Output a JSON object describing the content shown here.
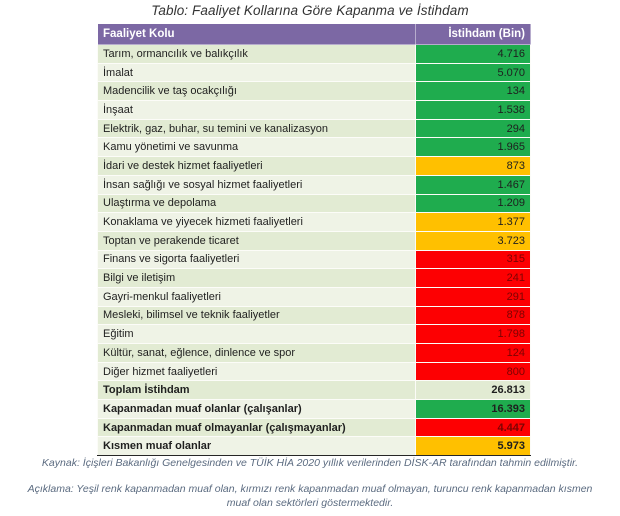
{
  "title": "Tablo: Faaliyet Kollarına Göre Kapanma ve İstihdam",
  "table": {
    "headers": [
      "Faaliyet Kolu",
      "İstihdam (Bin)"
    ],
    "rows": [
      {
        "label": "Tarım, ormancılık ve balıkçılık",
        "value": "4.716",
        "color": "green",
        "bold": false
      },
      {
        "label": "İmalat",
        "value": "5.070",
        "color": "green",
        "bold": false
      },
      {
        "label": "Madencilik ve taş ocakçılığı",
        "value": "134",
        "color": "green",
        "bold": false
      },
      {
        "label": "İnşaat",
        "value": "1.538",
        "color": "green",
        "bold": false
      },
      {
        "label": "Elektrik, gaz, buhar, su temini ve kanalizasyon",
        "value": "294",
        "color": "green",
        "bold": false
      },
      {
        "label": "Kamu yönetimi ve savunma",
        "value": "1.965",
        "color": "green",
        "bold": false
      },
      {
        "label": "İdari ve destek hizmet faaliyetleri",
        "value": "873",
        "color": "orange",
        "bold": false
      },
      {
        "label": "İnsan sağlığı ve sosyal hizmet faaliyetleri",
        "value": "1.467",
        "color": "green",
        "bold": false
      },
      {
        "label": "Ulaştırma ve depolama",
        "value": "1.209",
        "color": "green",
        "bold": false
      },
      {
        "label": "Konaklama ve yiyecek hizmeti faaliyetleri",
        "value": "1.377",
        "color": "orange",
        "bold": false
      },
      {
        "label": "Toptan ve perakende ticaret",
        "value": "3.723",
        "color": "orange",
        "bold": false
      },
      {
        "label": "Finans ve sigorta faaliyetleri",
        "value": "315",
        "color": "red",
        "bold": false
      },
      {
        "label": "Bilgi ve iletişim",
        "value": "241",
        "color": "red",
        "bold": false
      },
      {
        "label": "Gayri-menkul faaliyetleri",
        "value": "291",
        "color": "red",
        "bold": false
      },
      {
        "label": "Mesleki, bilimsel ve teknik faaliyetler",
        "value": "878",
        "color": "red",
        "bold": false
      },
      {
        "label": "Eğitim",
        "value": "1.798",
        "color": "red",
        "bold": false
      },
      {
        "label": "Kültür, sanat, eğlence, dinlence ve spor",
        "value": "124",
        "color": "red",
        "bold": false
      },
      {
        "label": "Diğer hizmet faaliyetleri",
        "value": "800",
        "color": "red",
        "bold": false
      },
      {
        "label": "Toplam İstihdam",
        "value": "26.813",
        "color": "none",
        "bold": true
      },
      {
        "label": "Kapanmadan muaf olanlar (çalışanlar)",
        "value": "16.393",
        "color": "green",
        "bold": true
      },
      {
        "label": "Kapanmadan muaf olmayanlar (çalışmayanlar)",
        "value": "4.447",
        "color": "red",
        "bold": true
      },
      {
        "label": "Kısmen muaf olanlar",
        "value": "5.973",
        "color": "orange",
        "bold": true
      }
    ]
  },
  "footnotes": {
    "source": "Kaynak: İçişleri Bakanlığı Genelgesinden ve TÜİK HİA 2020 yıllık verilerinden DİSK-AR tarafından tahmin edilmiştir.",
    "note": "Açıklama: Yeşil renk kapanmadan muaf olan, kırmızı renk kapanmadan muaf olmayan, turuncu renk kapanmadan kısmen muaf olan sektörleri göstermektedir."
  },
  "colors": {
    "header_bg": "#7c68a4",
    "green": "#1fac4e",
    "orange": "#ffc000",
    "red": "#fd0002",
    "red_text": "#7c0302",
    "row_band_light": "#eff3e6",
    "row_band_dark": "#e2ebd3"
  }
}
